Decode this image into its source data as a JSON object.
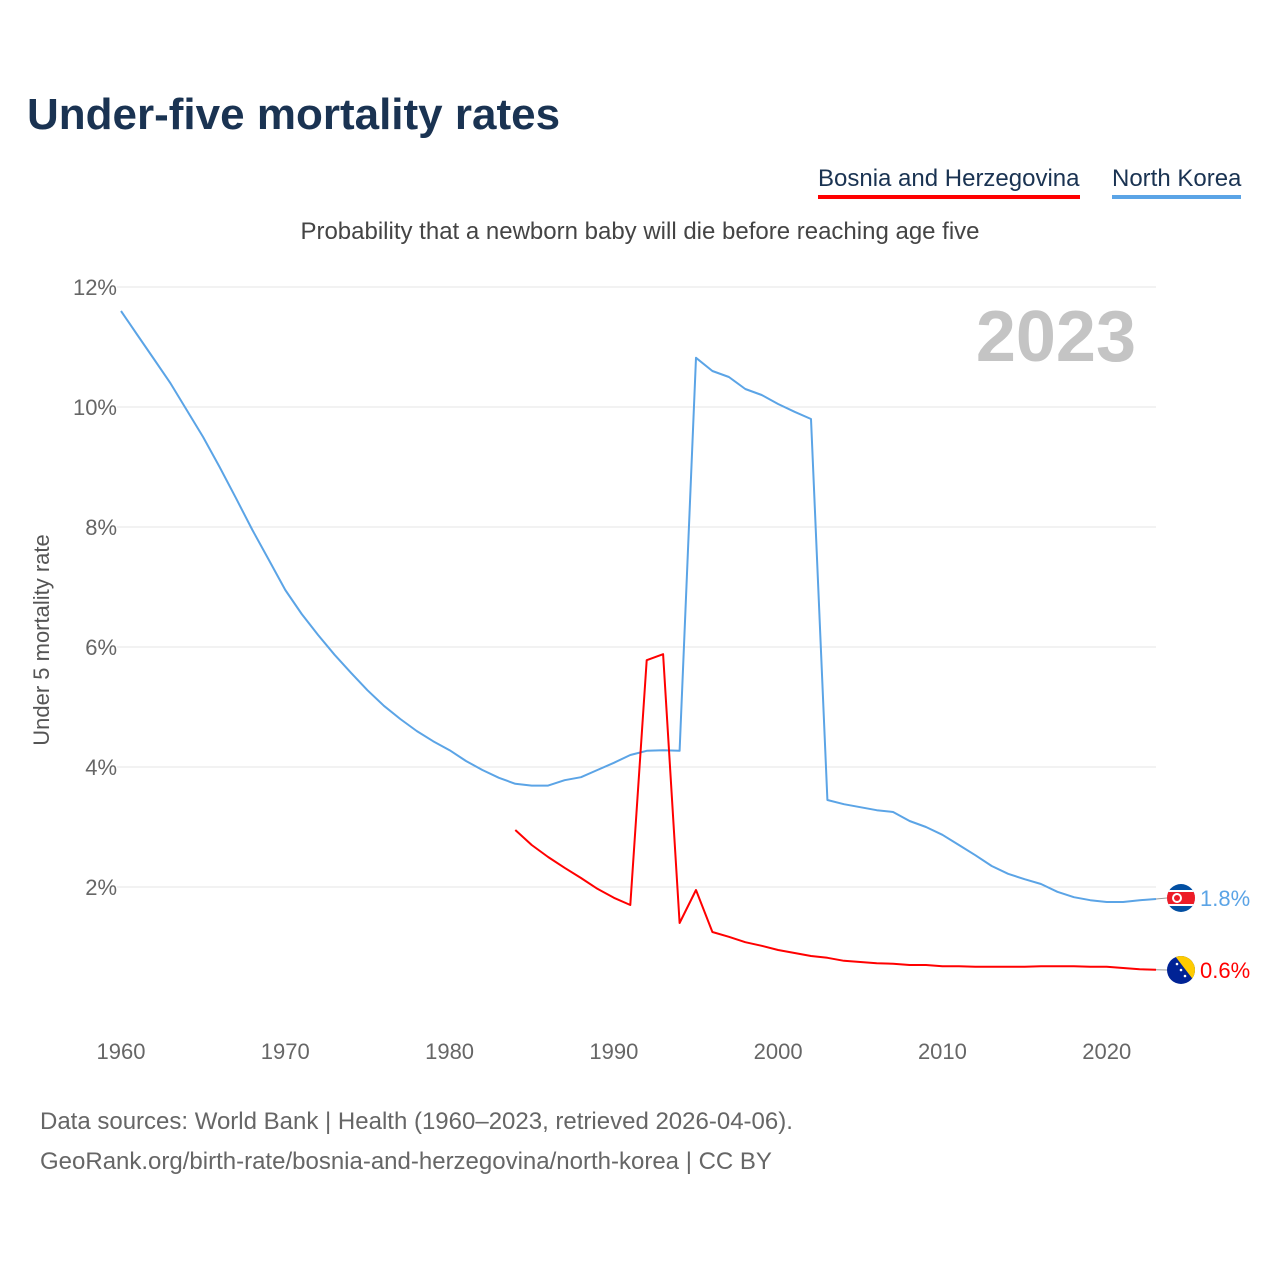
{
  "title": "Under-five mortality rates",
  "subtitle": "Probability that a newborn baby will die before reaching age five",
  "legend": [
    {
      "label": "Bosnia and Herzegovina",
      "color": "#ff0000"
    },
    {
      "label": "North Korea",
      "color": "#5ba4e6"
    }
  ],
  "source_line1": "Data sources: World Bank | Health (1960–2023, retrieved 2026-04-06).",
  "source_line2": "GeoRank.org/birth-rate/bosnia-and-herzegovina/north-korea | CC BY",
  "chart_data": {
    "type": "line",
    "title": "Under-five mortality rates",
    "ylabel": "Under 5 mortality rate",
    "xlabel": "",
    "year_label": "2023",
    "xlim": [
      1960,
      2023
    ],
    "ylim": [
      0,
      12
    ],
    "xticks": [
      "1960",
      "1970",
      "1980",
      "1990",
      "2000",
      "2010",
      "2020"
    ],
    "yticks": [
      "2%",
      "4%",
      "6%",
      "8%",
      "10%",
      "12%"
    ],
    "grid": true,
    "series": [
      {
        "name": "North Korea",
        "color": "#5ba4e6",
        "end_label": "1.8%",
        "flag": "north-korea-flag",
        "x": [
          1960,
          1961,
          1962,
          1963,
          1964,
          1965,
          1966,
          1967,
          1968,
          1969,
          1970,
          1971,
          1972,
          1973,
          1974,
          1975,
          1976,
          1977,
          1978,
          1979,
          1980,
          1981,
          1982,
          1983,
          1984,
          1985,
          1986,
          1987,
          1988,
          1989,
          1990,
          1991,
          1992,
          1993,
          1994,
          1995,
          1996,
          1997,
          1998,
          1999,
          2000,
          2001,
          2002,
          2003,
          2004,
          2005,
          2006,
          2007,
          2008,
          2009,
          2010,
          2011,
          2012,
          2013,
          2014,
          2015,
          2016,
          2017,
          2018,
          2019,
          2020,
          2021,
          2022,
          2023
        ],
        "y": [
          11.6,
          11.2,
          10.8,
          10.4,
          9.95,
          9.5,
          9.0,
          8.48,
          7.95,
          7.45,
          6.95,
          6.55,
          6.2,
          5.87,
          5.57,
          5.28,
          5.02,
          4.8,
          4.6,
          4.43,
          4.28,
          4.1,
          3.95,
          3.82,
          3.72,
          3.69,
          3.69,
          3.78,
          3.83,
          3.95,
          4.07,
          4.2,
          4.27,
          4.28,
          4.27,
          10.82,
          10.6,
          10.5,
          10.3,
          10.2,
          10.05,
          9.92,
          9.8,
          3.45,
          3.38,
          3.33,
          3.28,
          3.25,
          3.1,
          3.0,
          2.87,
          2.7,
          2.53,
          2.35,
          2.22,
          2.13,
          2.05,
          1.92,
          1.83,
          1.78,
          1.75,
          1.75,
          1.78,
          1.8
        ]
      },
      {
        "name": "Bosnia and Herzegovina",
        "color": "#ff0000",
        "end_label": "0.6%",
        "flag": "bosnia-flag",
        "x": [
          1984,
          1985,
          1986,
          1987,
          1988,
          1989,
          1990,
          1991,
          1992,
          1993,
          1994,
          1995,
          1996,
          1997,
          1998,
          1999,
          2000,
          2001,
          2002,
          2003,
          2004,
          2005,
          2006,
          2007,
          2008,
          2009,
          2010,
          2011,
          2012,
          2013,
          2014,
          2015,
          2016,
          2017,
          2018,
          2019,
          2020,
          2021,
          2022,
          2023
        ],
        "y": [
          2.95,
          2.7,
          2.5,
          2.32,
          2.15,
          1.97,
          1.82,
          1.7,
          5.78,
          5.88,
          1.4,
          1.95,
          1.25,
          1.17,
          1.08,
          1.02,
          0.95,
          0.9,
          0.85,
          0.82,
          0.77,
          0.75,
          0.73,
          0.72,
          0.7,
          0.7,
          0.68,
          0.68,
          0.67,
          0.67,
          0.67,
          0.67,
          0.68,
          0.68,
          0.68,
          0.67,
          0.67,
          0.65,
          0.63,
          0.62
        ]
      }
    ]
  }
}
